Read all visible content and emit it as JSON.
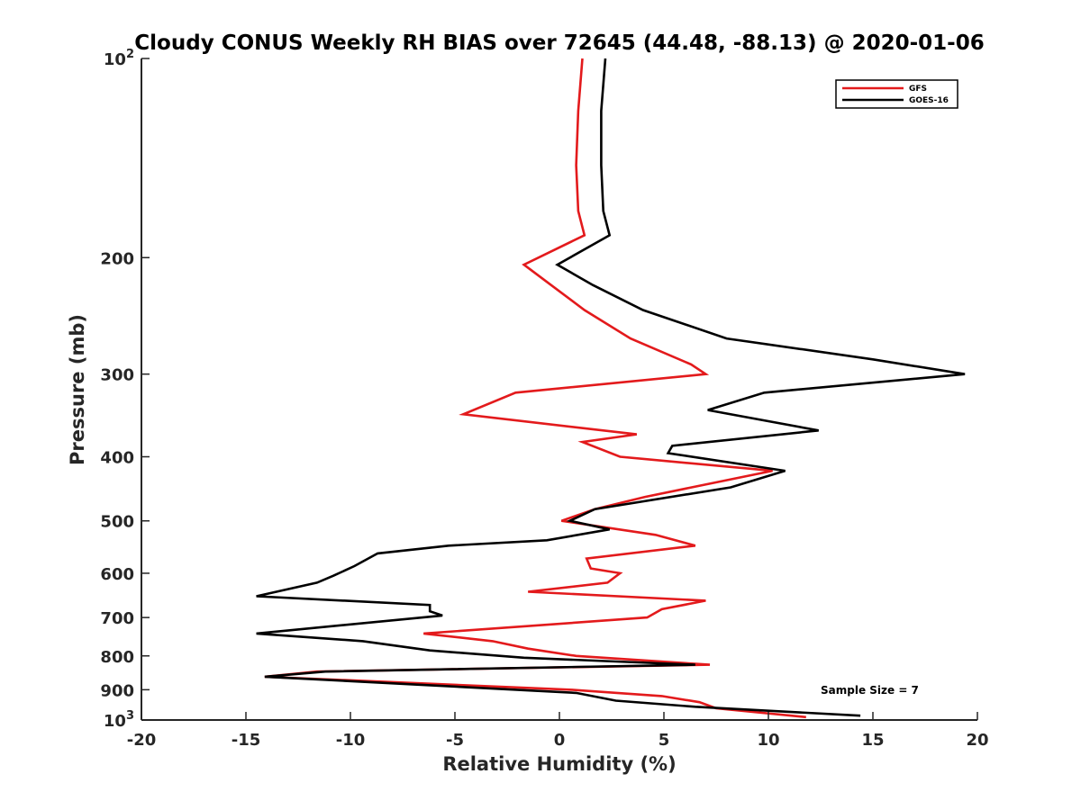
{
  "chart_data": {
    "type": "line",
    "title": "Cloudy CONUS Weekly RH BIAS over 72645 (44.48, -88.13) @ 2020-01-06",
    "xlabel": "Relative Humidity (%)",
    "ylabel": "Pressure (mb)",
    "xlim": [
      -20,
      20
    ],
    "ylim": [
      1000,
      100
    ],
    "yscale": "log",
    "y_reversed": true,
    "grid": false,
    "legend_position": "top-right",
    "annotation": "Sample Size = 7",
    "x_ticks": [
      "-20",
      "-15",
      "-10",
      "-5",
      "0",
      "5",
      "10",
      "15",
      "20"
    ],
    "y_ticks": [
      {
        "value": 100,
        "label": "10",
        "sup": "2"
      },
      {
        "value": 200,
        "label": "200",
        "sup": ""
      },
      {
        "value": 300,
        "label": "300",
        "sup": ""
      },
      {
        "value": 400,
        "label": "400",
        "sup": ""
      },
      {
        "value": 500,
        "label": "500",
        "sup": ""
      },
      {
        "value": 600,
        "label": "600",
        "sup": ""
      },
      {
        "value": 700,
        "label": "700",
        "sup": ""
      },
      {
        "value": 800,
        "label": "800",
        "sup": ""
      },
      {
        "value": 900,
        "label": "900",
        "sup": ""
      },
      {
        "value": 1000,
        "label": "10",
        "sup": "3"
      }
    ],
    "series": [
      {
        "name": "GFS",
        "color": "#e31a1c",
        "points": [
          [
            1.1,
            100
          ],
          [
            0.9,
            120
          ],
          [
            0.8,
            145
          ],
          [
            0.9,
            170
          ],
          [
            1.2,
            185
          ],
          [
            -1.7,
            205
          ],
          [
            -0.4,
            220
          ],
          [
            1.2,
            240
          ],
          [
            3.4,
            265
          ],
          [
            6.3,
            290
          ],
          [
            7.0,
            300
          ],
          [
            -2.1,
            320
          ],
          [
            -4.6,
            345
          ],
          [
            3.7,
            370
          ],
          [
            1.1,
            380
          ],
          [
            2.9,
            400
          ],
          [
            10.2,
            420
          ],
          [
            4.1,
            460
          ],
          [
            1.7,
            480
          ],
          [
            0.1,
            500
          ],
          [
            4.6,
            525
          ],
          [
            6.5,
            545
          ],
          [
            1.3,
            570
          ],
          [
            1.5,
            590
          ],
          [
            2.9,
            600
          ],
          [
            2.3,
            620
          ],
          [
            -1.5,
            640
          ],
          [
            7.0,
            660
          ],
          [
            4.9,
            680
          ],
          [
            4.2,
            700
          ],
          [
            -6.5,
            740
          ],
          [
            -3.2,
            760
          ],
          [
            -1.5,
            780
          ],
          [
            0.8,
            800
          ],
          [
            7.2,
            825
          ],
          [
            -11.6,
            845
          ],
          [
            -14.1,
            860
          ],
          [
            0.6,
            900
          ],
          [
            4.9,
            920
          ],
          [
            6.7,
            940
          ],
          [
            7.5,
            960
          ],
          [
            11.8,
            990
          ]
        ]
      },
      {
        "name": "GOES-16",
        "color": "#000000",
        "points": [
          [
            2.2,
            100
          ],
          [
            2.0,
            120
          ],
          [
            2.0,
            145
          ],
          [
            2.1,
            170
          ],
          [
            2.4,
            185
          ],
          [
            -0.1,
            205
          ],
          [
            1.6,
            220
          ],
          [
            4.0,
            240
          ],
          [
            8.0,
            265
          ],
          [
            15.0,
            285
          ],
          [
            19.4,
            300
          ],
          [
            9.8,
            320
          ],
          [
            7.1,
            340
          ],
          [
            12.4,
            365
          ],
          [
            5.4,
            385
          ],
          [
            5.2,
            395
          ],
          [
            10.8,
            420
          ],
          [
            8.2,
            445
          ],
          [
            1.7,
            480
          ],
          [
            0.5,
            500
          ],
          [
            2.4,
            515
          ],
          [
            -0.6,
            535
          ],
          [
            -5.3,
            545
          ],
          [
            -8.7,
            560
          ],
          [
            -9.8,
            585
          ],
          [
            -10.8,
            605
          ],
          [
            -11.6,
            620
          ],
          [
            -14.5,
            650
          ],
          [
            -6.2,
            670
          ],
          [
            -6.2,
            685
          ],
          [
            -5.6,
            695
          ],
          [
            -14.5,
            740
          ],
          [
            -9.4,
            760
          ],
          [
            -6.2,
            785
          ],
          [
            -1.7,
            805
          ],
          [
            6.5,
            825
          ],
          [
            -11.2,
            845
          ],
          [
            -14.1,
            860
          ],
          [
            0.8,
            910
          ],
          [
            2.7,
            935
          ],
          [
            6.5,
            955
          ],
          [
            14.4,
            985
          ]
        ]
      }
    ]
  }
}
